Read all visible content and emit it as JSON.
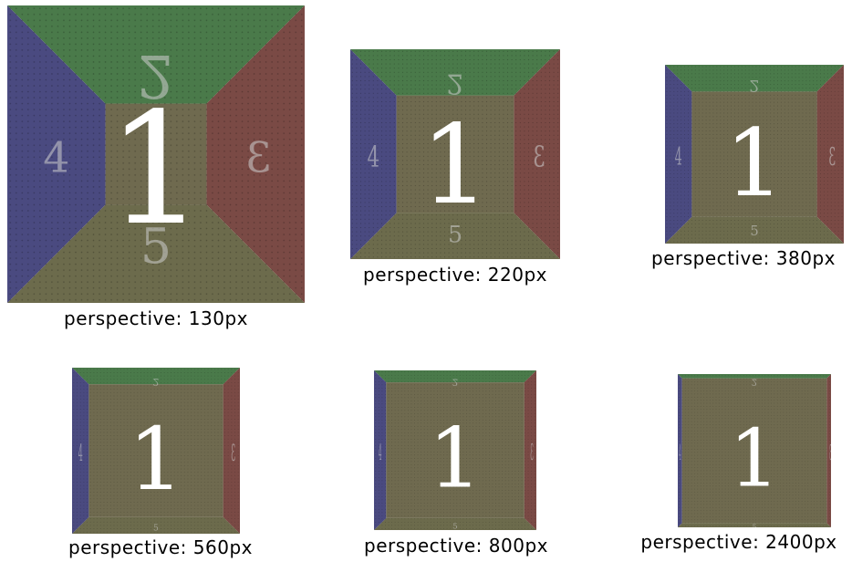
{
  "faces": {
    "back": {
      "color": "#6f6a4f",
      "label": "1"
    },
    "top": {
      "color": "#4a7a4a",
      "label": "2"
    },
    "right": {
      "color": "#7a4a45",
      "label": "3"
    },
    "left": {
      "color": "#4a4a80",
      "label": "4"
    },
    "bottom": {
      "color": "#6c6b4c",
      "label": "5"
    }
  },
  "demos": [
    {
      "caption": "perspective: 130px",
      "perspective": 130
    },
    {
      "caption": "perspective: 220px",
      "perspective": 220
    },
    {
      "caption": "perspective: 380px",
      "perspective": 380
    },
    {
      "caption": "perspective: 560px",
      "perspective": 560
    },
    {
      "caption": "perspective: 800px",
      "perspective": 800
    },
    {
      "caption": "perspective: 2400px",
      "perspective": 2400
    }
  ]
}
